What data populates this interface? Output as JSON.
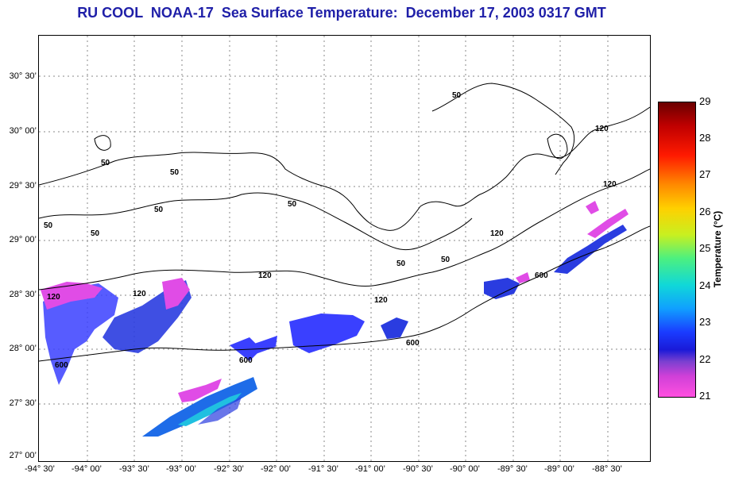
{
  "title": "RU COOL  NOAA-17  Sea Surface Temperature:  December 17, 2003 0317 GMT",
  "latitude_labels": [
    "30° 30’",
    "30° 00’",
    "29° 30’",
    "29° 00’",
    "28° 30’",
    "28° 00’",
    "27° 30’",
    "27° 00’"
  ],
  "longitude_labels": [
    "-94° 30’",
    "-94° 00’",
    "-93° 30’",
    "-93° 00’",
    "-92° 30’",
    "-92° 00’",
    "-91° 30’",
    "-91° 00’",
    "-90° 30’",
    "-90° 00’",
    "-89° 30’",
    "-89° 00’",
    "-88° 30’"
  ],
  "bathymetry_labels": [
    "50",
    "50",
    "50",
    "50",
    "50",
    "50",
    "50",
    "50",
    "50",
    "120",
    "120",
    "120",
    "120",
    "120",
    "120",
    "120",
    "600",
    "600",
    "600",
    "600"
  ],
  "colorbar": {
    "title": "Temperature (°C)",
    "ticks": [
      "29",
      "28",
      "27",
      "26",
      "25",
      "24",
      "23",
      "22",
      "21"
    ]
  },
  "colors": {
    "title": "#1f1fa8",
    "low": "#ff50e0",
    "mid": "#1a3cff",
    "high": "#6a0000"
  }
}
